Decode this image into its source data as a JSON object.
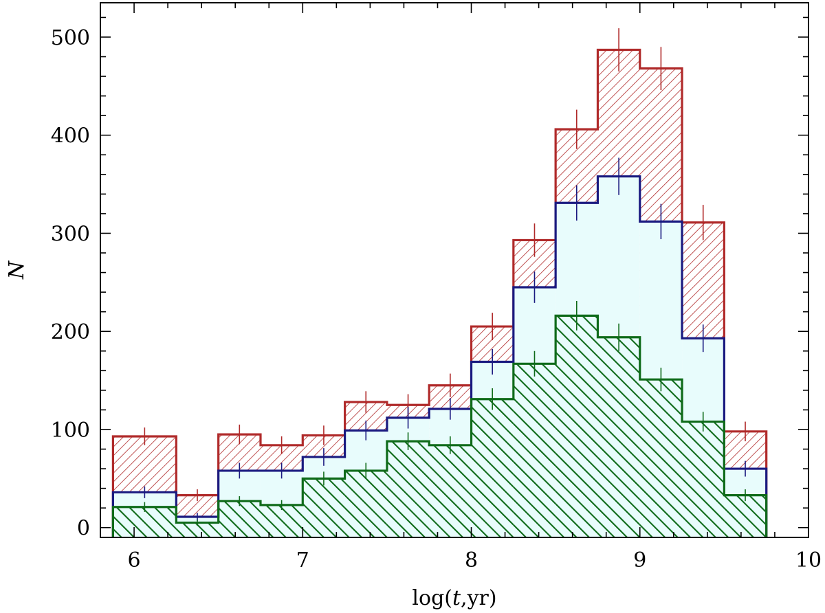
{
  "chart_data": {
    "type": "bar",
    "subtype": "stepped-histogram-overlay",
    "xlabel_parts": [
      "log(",
      "t",
      ",yr)"
    ],
    "ylabel": "N",
    "xlim": [
      5.8,
      10.0
    ],
    "ylim": [
      -10,
      535
    ],
    "x_ticks": [
      "6",
      "7",
      "8",
      "9",
      "10"
    ],
    "y_ticks": [
      "0",
      "100",
      "200",
      "300",
      "400",
      "500"
    ],
    "bin_edges": [
      5.875,
      6.25,
      6.5,
      6.75,
      7.0,
      7.25,
      7.5,
      7.75,
      8.0,
      8.25,
      8.5,
      8.75,
      9.0,
      9.25,
      9.5,
      9.75
    ],
    "series": [
      {
        "fill": "hatch-thin",
        "color": "#b02a2a",
        "values": [
          93,
          33,
          95,
          84,
          94,
          128,
          125,
          145,
          205,
          293,
          406,
          487,
          468,
          311,
          98
        ],
        "errors": [
          9,
          6,
          10,
          9,
          10,
          11,
          11,
          12,
          14,
          17,
          20,
          22,
          22,
          18,
          10
        ]
      },
      {
        "fill": "solid",
        "color": "#1a1a80",
        "fill_color": "#e8fcfc",
        "values": [
          36,
          11,
          58,
          58,
          72,
          99,
          112,
          121,
          169,
          245,
          331,
          358,
          312,
          193,
          60
        ],
        "errors": [
          6,
          4,
          8,
          8,
          9,
          10,
          11,
          11,
          13,
          16,
          18,
          19,
          18,
          14,
          8
        ]
      },
      {
        "fill": "hatch-thick",
        "color": "#0f6b1a",
        "values": [
          21,
          5,
          27,
          23,
          50,
          58,
          88,
          84,
          131,
          167,
          216,
          194,
          151,
          108,
          33
        ],
        "errors": [
          5,
          3,
          5,
          5,
          7,
          8,
          9,
          9,
          11,
          13,
          15,
          14,
          12,
          10,
          6
        ]
      }
    ],
    "grid": false,
    "legend": "none"
  }
}
